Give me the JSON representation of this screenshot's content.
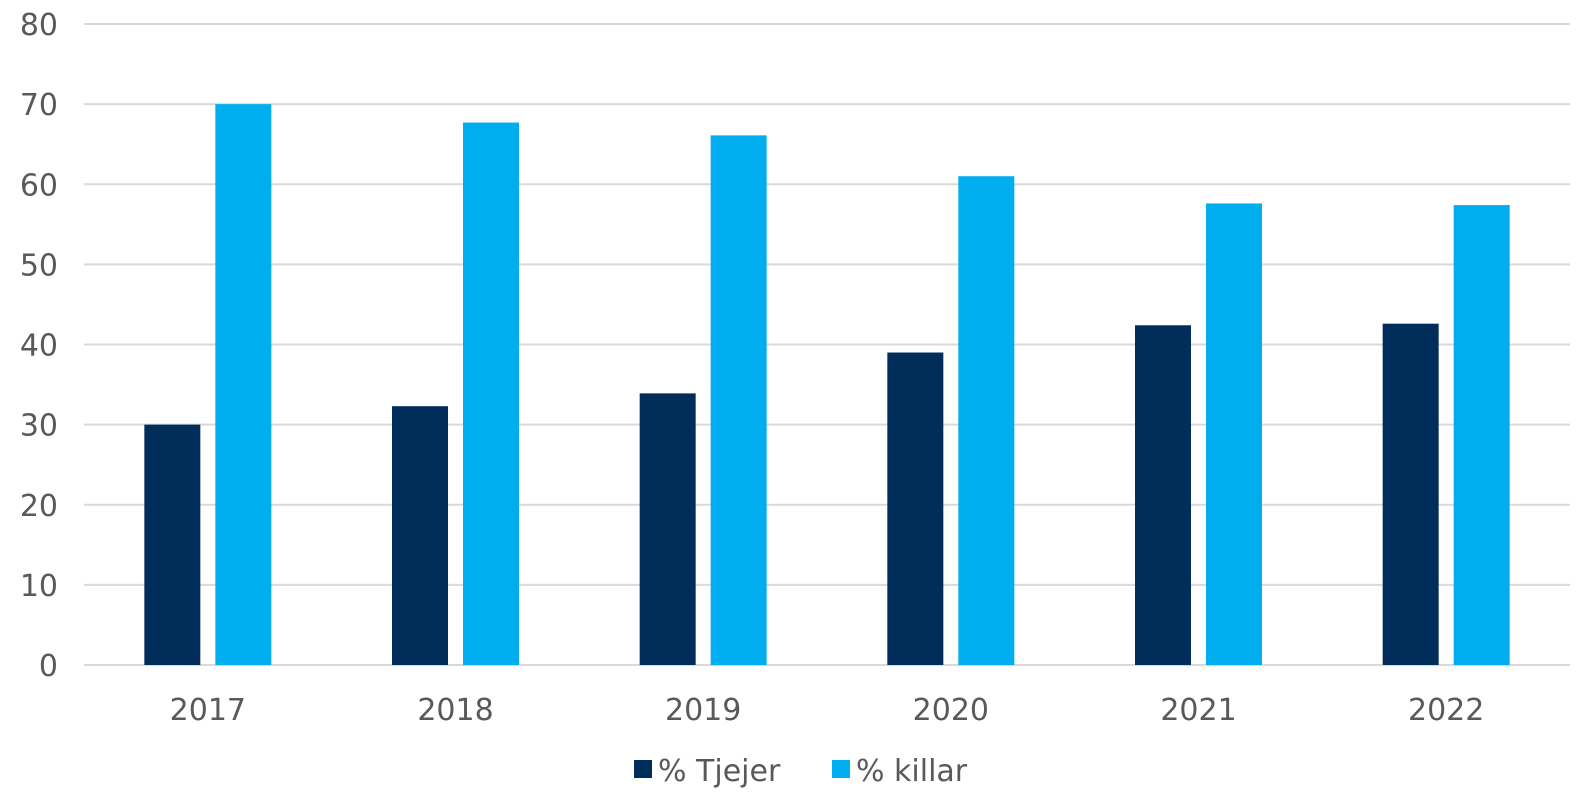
{
  "chart_data": {
    "type": "bar",
    "categories": [
      "2017",
      "2018",
      "2019",
      "2020",
      "2021",
      "2022"
    ],
    "series": [
      {
        "name": "% Tjejer",
        "color": "#002d5a",
        "values": [
          30,
          32.3,
          33.9,
          39,
          42.4,
          42.6
        ]
      },
      {
        "name": "% killar",
        "color": "#00adee",
        "values": [
          70,
          67.7,
          66.1,
          61,
          57.6,
          57.4
        ]
      }
    ],
    "ylim": [
      0,
      80
    ],
    "yticks": [
      "0",
      "10",
      "20",
      "30",
      "40",
      "50",
      "60",
      "70",
      "80"
    ],
    "grid": true,
    "legend_position": "bottom-center",
    "title": "",
    "xlabel": "",
    "ylabel": ""
  }
}
